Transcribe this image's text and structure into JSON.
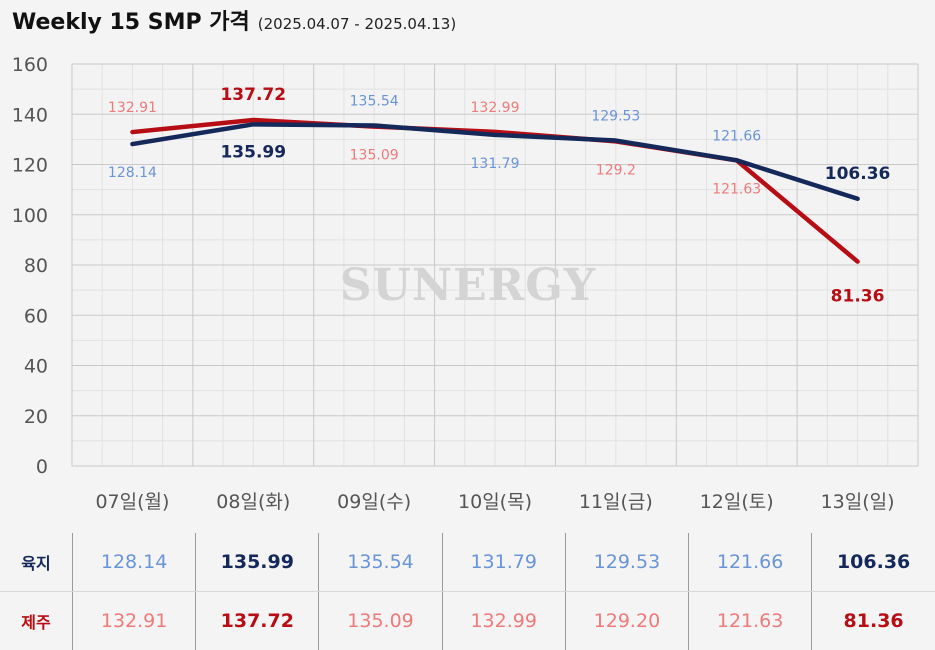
{
  "header": {
    "title": "Weekly 15 SMP 가격",
    "subtitle": "(2025.04.07 - 2025.04.13)"
  },
  "watermark": "SUNERGY",
  "colors": {
    "mainland_line": "#14285a",
    "jeju_line": "#b70d14",
    "mainland_label": "#6a94d8",
    "jeju_label": "#ee7a7a",
    "mainland_strong": "#14285a",
    "jeju_strong": "#b70d14"
  },
  "chart_data": {
    "type": "line",
    "categories": [
      "07일(월)",
      "08일(화)",
      "09일(수)",
      "10일(목)",
      "11일(금)",
      "12일(토)",
      "13일(일)"
    ],
    "ylim": [
      0,
      160
    ],
    "yticks": [
      0,
      20,
      40,
      60,
      80,
      100,
      120,
      140,
      160
    ],
    "grid": true,
    "series": [
      {
        "name": "육지",
        "values": [
          128.14,
          135.99,
          135.54,
          131.79,
          129.53,
          121.66,
          106.36
        ],
        "labels": [
          "128.14",
          "135.99",
          "135.54",
          "131.79",
          "129.53",
          "121.66",
          "106.36"
        ],
        "highlight": [
          false,
          true,
          false,
          false,
          false,
          false,
          true
        ]
      },
      {
        "name": "제주",
        "values": [
          132.91,
          137.72,
          135.09,
          132.99,
          129.2,
          121.63,
          81.36
        ],
        "labels": [
          "132.91",
          "137.72",
          "135.09",
          "132.99",
          "129.2",
          "121.63",
          "81.36"
        ],
        "highlight": [
          false,
          true,
          false,
          false,
          false,
          false,
          true
        ]
      }
    ]
  },
  "table": {
    "rows": [
      {
        "label": "육지",
        "values": [
          "128.14",
          "135.99",
          "135.54",
          "131.79",
          "129.53",
          "121.66",
          "106.36"
        ],
        "highlight": [
          false,
          true,
          false,
          false,
          false,
          false,
          true
        ]
      },
      {
        "label": "제주",
        "values": [
          "132.91",
          "137.72",
          "135.09",
          "132.99",
          "129.20",
          "121.63",
          "81.36"
        ],
        "highlight": [
          false,
          true,
          false,
          false,
          false,
          false,
          true
        ]
      }
    ]
  }
}
